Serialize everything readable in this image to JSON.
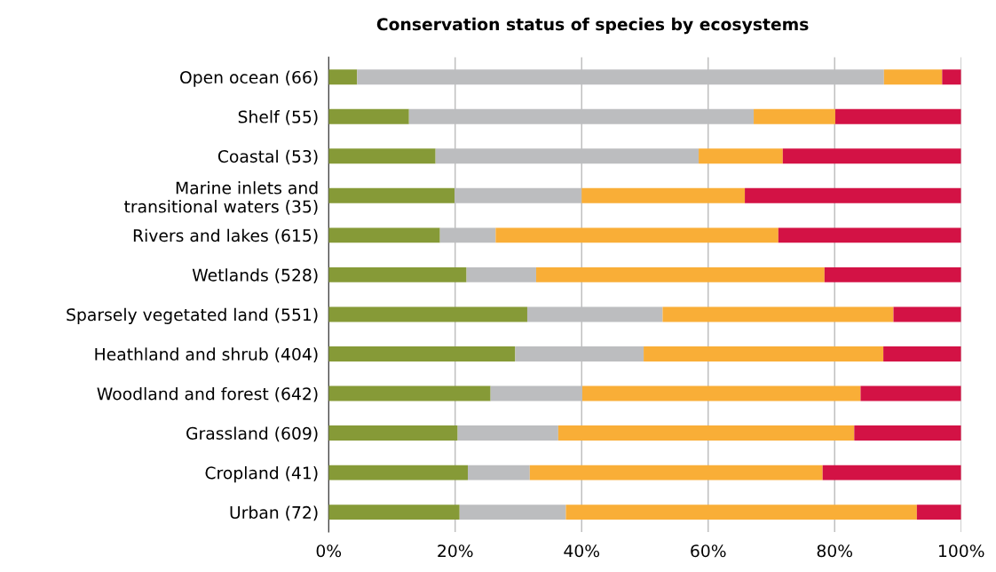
{
  "chart_data": {
    "type": "bar",
    "orientation": "horizontal",
    "stacked": true,
    "title": "Conservation status of species by ecosystems",
    "categories": [
      "Open ocean (66)",
      "Shelf (55)",
      "Coastal (53)",
      "Marine inlets and\ntransitional waters (35)",
      "Rivers and lakes (615)",
      "Wetlands (528)",
      "Sparsely vegetated land (551)",
      "Heathland and shrub (404)",
      "Woodland and forest (642)",
      "Grassland (609)",
      "Cropland (41)",
      "Urban (72)"
    ],
    "series": [
      {
        "color": "#869a37",
        "values": [
          4.5,
          12.7,
          16.9,
          19.9,
          17.6,
          21.8,
          31.4,
          29.5,
          25.6,
          20.4,
          22.0,
          20.7
        ]
      },
      {
        "color": "#bcbdbf",
        "values": [
          83.3,
          54.5,
          41.6,
          20.1,
          8.8,
          11.0,
          21.4,
          20.3,
          14.5,
          15.9,
          9.8,
          16.8
        ]
      },
      {
        "color": "#f9ae37",
        "values": [
          9.2,
          12.9,
          13.3,
          25.8,
          44.7,
          45.6,
          36.5,
          37.9,
          44.0,
          46.8,
          46.3,
          55.5
        ]
      },
      {
        "color": "#d31245",
        "values": [
          3.0,
          19.9,
          28.2,
          34.2,
          28.9,
          21.6,
          10.7,
          12.3,
          15.9,
          16.9,
          21.9,
          7.0
        ]
      }
    ],
    "xlim": [
      0,
      100
    ],
    "xticks": [
      {
        "value": 0,
        "label": "0%"
      },
      {
        "value": 20,
        "label": "20%"
      },
      {
        "value": 40,
        "label": "40%"
      },
      {
        "value": 60,
        "label": "60%"
      },
      {
        "value": 80,
        "label": "80%"
      },
      {
        "value": 100,
        "label": "100%"
      }
    ],
    "grid": "x"
  }
}
